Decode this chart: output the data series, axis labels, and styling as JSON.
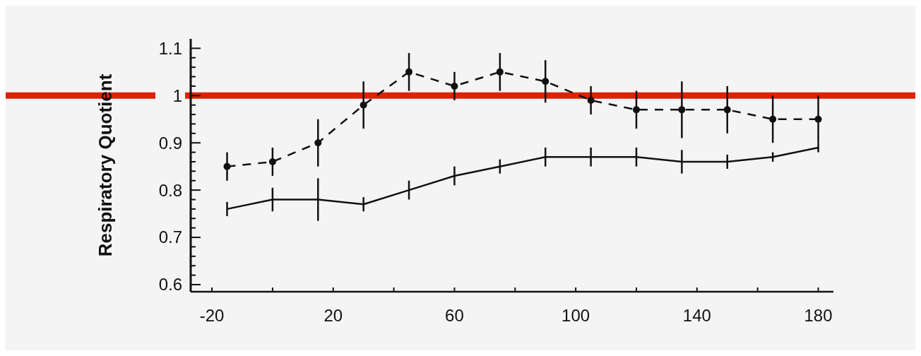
{
  "chart_data": {
    "type": "line",
    "ylabel": "Respiratory Quotient",
    "x": [
      -15,
      0,
      15,
      30,
      45,
      60,
      75,
      90,
      105,
      120,
      135,
      150,
      165,
      180
    ],
    "xlim": [
      -27,
      185
    ],
    "xticks": [
      -20,
      {
        "value": 0,
        "label": null
      },
      20,
      {
        "value": 40,
        "label": null
      },
      60,
      {
        "value": 80,
        "label": null
      },
      100,
      {
        "value": 120,
        "label": null
      },
      140,
      {
        "value": 160,
        "label": null
      },
      180
    ],
    "ylim": [
      0.585,
      1.12
    ],
    "yticks": [
      0.6,
      {
        "value": 0.62,
        "label": null
      },
      {
        "value": 0.64,
        "label": null
      },
      {
        "value": 0.66,
        "label": null
      },
      {
        "value": 0.68,
        "label": null
      },
      0.7,
      {
        "value": 0.72,
        "label": null
      },
      {
        "value": 0.74,
        "label": null
      },
      {
        "value": 0.76,
        "label": null
      },
      {
        "value": 0.78,
        "label": null
      },
      0.8,
      {
        "value": 0.82,
        "label": null
      },
      {
        "value": 0.84,
        "label": null
      },
      {
        "value": 0.86,
        "label": null
      },
      {
        "value": 0.88,
        "label": null
      },
      0.9,
      {
        "value": 0.92,
        "label": null
      },
      {
        "value": 0.94,
        "label": null
      },
      {
        "value": 0.96,
        "label": null
      },
      {
        "value": 0.98,
        "label": null
      },
      1,
      {
        "value": 1.02,
        "label": null
      },
      {
        "value": 1.04,
        "label": null
      },
      {
        "value": 1.06,
        "label": null
      },
      {
        "value": 1.08,
        "label": null
      },
      1.1
    ],
    "series": [
      {
        "color": "#111111",
        "line_style": "dashed",
        "marker": "circle",
        "values": [
          0.85,
          0.86,
          0.9,
          0.98,
          1.05,
          1.02,
          1.05,
          1.03,
          0.99,
          0.97,
          0.97,
          0.97,
          0.95,
          0.95
        ],
        "errors": [
          0.03,
          0.03,
          0.05,
          0.05,
          0.04,
          0.03,
          0.04,
          0.045,
          0.03,
          0.04,
          0.06,
          0.05,
          0.05,
          0.05
        ]
      },
      {
        "color": "#111111",
        "line_style": "solid",
        "marker": "none",
        "values": [
          0.76,
          0.78,
          0.78,
          0.77,
          0.8,
          0.83,
          0.85,
          0.87,
          0.87,
          0.87,
          0.86,
          0.86,
          0.87,
          0.89
        ],
        "errors": [
          0.015,
          0.025,
          0.045,
          0.015,
          0.02,
          0.02,
          0.015,
          0.02,
          0.02,
          0.02,
          0.025,
          0.015,
          0.01,
          0.01
        ]
      }
    ],
    "ref_lines": [
      {
        "axis": "y",
        "value": 1,
        "color": "#dd2200"
      }
    ],
    "grid": false
  }
}
